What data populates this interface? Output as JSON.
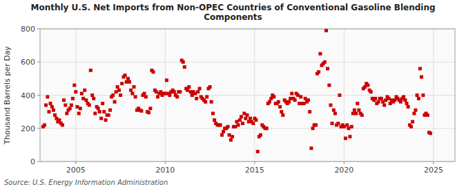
{
  "chart_data": {
    "type": "scatter",
    "title": "Monthly U.S. Net Imports from Non-OPEC Countries of Conventional Gasoline Blending\nComponents",
    "ylabel": "Thousand Barrels per Day",
    "source": "Source: U.S. Energy Information Administration",
    "color": "#cc0000",
    "marker": "square",
    "grid": true,
    "xlim": [
      2003.0,
      2026.2
    ],
    "xticks": [
      2005,
      2010,
      2015,
      2020,
      2025
    ],
    "ylim": [
      0,
      800
    ],
    "yticks": [
      0,
      200,
      400,
      600,
      800
    ],
    "x": [
      2003.17,
      2003.25,
      2003.33,
      2003.42,
      2003.5,
      2003.58,
      2003.67,
      2003.75,
      2003.83,
      2003.92,
      2004.0,
      2004.08,
      2004.17,
      2004.25,
      2004.33,
      2004.42,
      2004.5,
      2004.58,
      2004.67,
      2004.75,
      2004.83,
      2004.92,
      2005.0,
      2005.08,
      2005.17,
      2005.25,
      2005.33,
      2005.42,
      2005.5,
      2005.58,
      2005.67,
      2005.75,
      2005.83,
      2005.92,
      2006.0,
      2006.08,
      2006.17,
      2006.25,
      2006.33,
      2006.42,
      2006.5,
      2006.58,
      2006.67,
      2006.75,
      2006.83,
      2006.92,
      2007.0,
      2007.08,
      2007.17,
      2007.25,
      2007.33,
      2007.42,
      2007.5,
      2007.58,
      2007.67,
      2007.75,
      2007.83,
      2007.92,
      2008.0,
      2008.08,
      2008.17,
      2008.25,
      2008.33,
      2008.42,
      2008.5,
      2008.58,
      2008.67,
      2008.75,
      2008.83,
      2008.92,
      2009.0,
      2009.08,
      2009.17,
      2009.25,
      2009.33,
      2009.42,
      2009.5,
      2009.58,
      2009.67,
      2009.75,
      2009.83,
      2009.92,
      2010.0,
      2010.08,
      2010.17,
      2010.25,
      2010.33,
      2010.42,
      2010.5,
      2010.58,
      2010.67,
      2010.75,
      2010.83,
      2010.92,
      2011.0,
      2011.08,
      2011.17,
      2011.25,
      2011.33,
      2011.42,
      2011.5,
      2011.58,
      2011.67,
      2011.75,
      2011.83,
      2011.92,
      2012.0,
      2012.08,
      2012.17,
      2012.25,
      2012.33,
      2012.42,
      2012.5,
      2012.58,
      2012.67,
      2012.75,
      2012.83,
      2012.92,
      2013.0,
      2013.08,
      2013.17,
      2013.25,
      2013.33,
      2013.42,
      2013.5,
      2013.58,
      2013.67,
      2013.75,
      2013.83,
      2013.92,
      2014.0,
      2014.08,
      2014.17,
      2014.25,
      2014.33,
      2014.42,
      2014.5,
      2014.58,
      2014.67,
      2014.75,
      2014.83,
      2014.92,
      2015.0,
      2015.08,
      2015.17,
      2015.25,
      2015.33,
      2015.42,
      2015.5,
      2015.58,
      2015.67,
      2015.75,
      2015.83,
      2015.92,
      2016.0,
      2016.08,
      2016.17,
      2016.25,
      2016.33,
      2016.42,
      2016.5,
      2016.58,
      2016.67,
      2016.75,
      2016.83,
      2016.92,
      2017.0,
      2017.08,
      2017.17,
      2017.25,
      2017.33,
      2017.42,
      2017.5,
      2017.58,
      2017.67,
      2017.75,
      2017.83,
      2017.92,
      2018.0,
      2018.08,
      2018.17,
      2018.25,
      2018.33,
      2018.42,
      2018.5,
      2018.58,
      2018.67,
      2018.75,
      2018.83,
      2018.92,
      2019.0,
      2019.08,
      2019.17,
      2019.25,
      2019.33,
      2019.42,
      2019.5,
      2019.58,
      2019.67,
      2019.75,
      2019.83,
      2019.92,
      2020.0,
      2020.08,
      2020.17,
      2020.25,
      2020.33,
      2020.42,
      2020.5,
      2020.58,
      2020.67,
      2020.75,
      2020.83,
      2020.92,
      2021.0,
      2021.08,
      2021.17,
      2021.25,
      2021.33,
      2021.42,
      2021.5,
      2021.58,
      2021.67,
      2021.75,
      2021.83,
      2021.92,
      2022.0,
      2022.08,
      2022.17,
      2022.25,
      2022.33,
      2022.42,
      2022.5,
      2022.58,
      2022.67,
      2022.75,
      2022.83,
      2022.92,
      2023.0,
      2023.08,
      2023.17,
      2023.25,
      2023.33,
      2023.42,
      2023.5,
      2023.58,
      2023.67,
      2023.75,
      2023.83,
      2023.92,
      2024.0,
      2024.08,
      2024.17,
      2024.25,
      2024.33,
      2024.42,
      2024.5,
      2024.58,
      2024.67,
      2024.75,
      2024.83
    ],
    "values": [
      210,
      220,
      340,
      390,
      300,
      350,
      330,
      310,
      280,
      260,
      240,
      250,
      230,
      220,
      370,
      340,
      290,
      310,
      320,
      340,
      380,
      460,
      420,
      330,
      290,
      320,
      410,
      380,
      430,
      370,
      350,
      340,
      550,
      400,
      380,
      290,
      330,
      320,
      300,
      260,
      350,
      300,
      250,
      280,
      280,
      310,
      390,
      400,
      360,
      420,
      450,
      430,
      400,
      470,
      510,
      520,
      480,
      500,
      480,
      430,
      410,
      450,
      390,
      310,
      320,
      310,
      305,
      400,
      410,
      390,
      300,
      295,
      320,
      550,
      540,
      430,
      420,
      390,
      410,
      420,
      400,
      410,
      410,
      490,
      410,
      400,
      420,
      430,
      420,
      400,
      390,
      420,
      420,
      610,
      600,
      570,
      440,
      430,
      450,
      420,
      400,
      420,
      410,
      380,
      420,
      440,
      390,
      380,
      370,
      360,
      390,
      440,
      450,
      360,
      290,
      250,
      230,
      220,
      220,
      220,
      160,
      180,
      200,
      200,
      210,
      160,
      130,
      150,
      210,
      210,
      240,
      220,
      250,
      270,
      230,
      290,
      260,
      280,
      240,
      260,
      240,
      230,
      260,
      250,
      60,
      150,
      160,
      220,
      210,
      200,
      200,
      350,
      360,
      380,
      400,
      390,
      350,
      350,
      360,
      330,
      300,
      280,
      370,
      360,
      350,
      360,
      380,
      410,
      380,
      370,
      410,
      400,
      350,
      390,
      350,
      350,
      380,
      360,
      370,
      300,
      80,
      200,
      220,
      220,
      530,
      540,
      650,
      580,
      590,
      600,
      790,
      560,
      460,
      340,
      230,
      310,
      290,
      220,
      230,
      400,
      210,
      220,
      210,
      140,
      220,
      200,
      150,
      210,
      290,
      310,
      290,
      350,
      310,
      290,
      280,
      440,
      450,
      470,
      460,
      430,
      420,
      380,
      370,
      380,
      350,
      360,
      380,
      380,
      360,
      340,
      370,
      390,
      380,
      350,
      370,
      360,
      370,
      390,
      380,
      370,
      360,
      380,
      390,
      370,
      350,
      330,
      220,
      210,
      240,
      290,
      310,
      400,
      380,
      560,
      510,
      400,
      280,
      290,
      280,
      175,
      170
    ]
  }
}
